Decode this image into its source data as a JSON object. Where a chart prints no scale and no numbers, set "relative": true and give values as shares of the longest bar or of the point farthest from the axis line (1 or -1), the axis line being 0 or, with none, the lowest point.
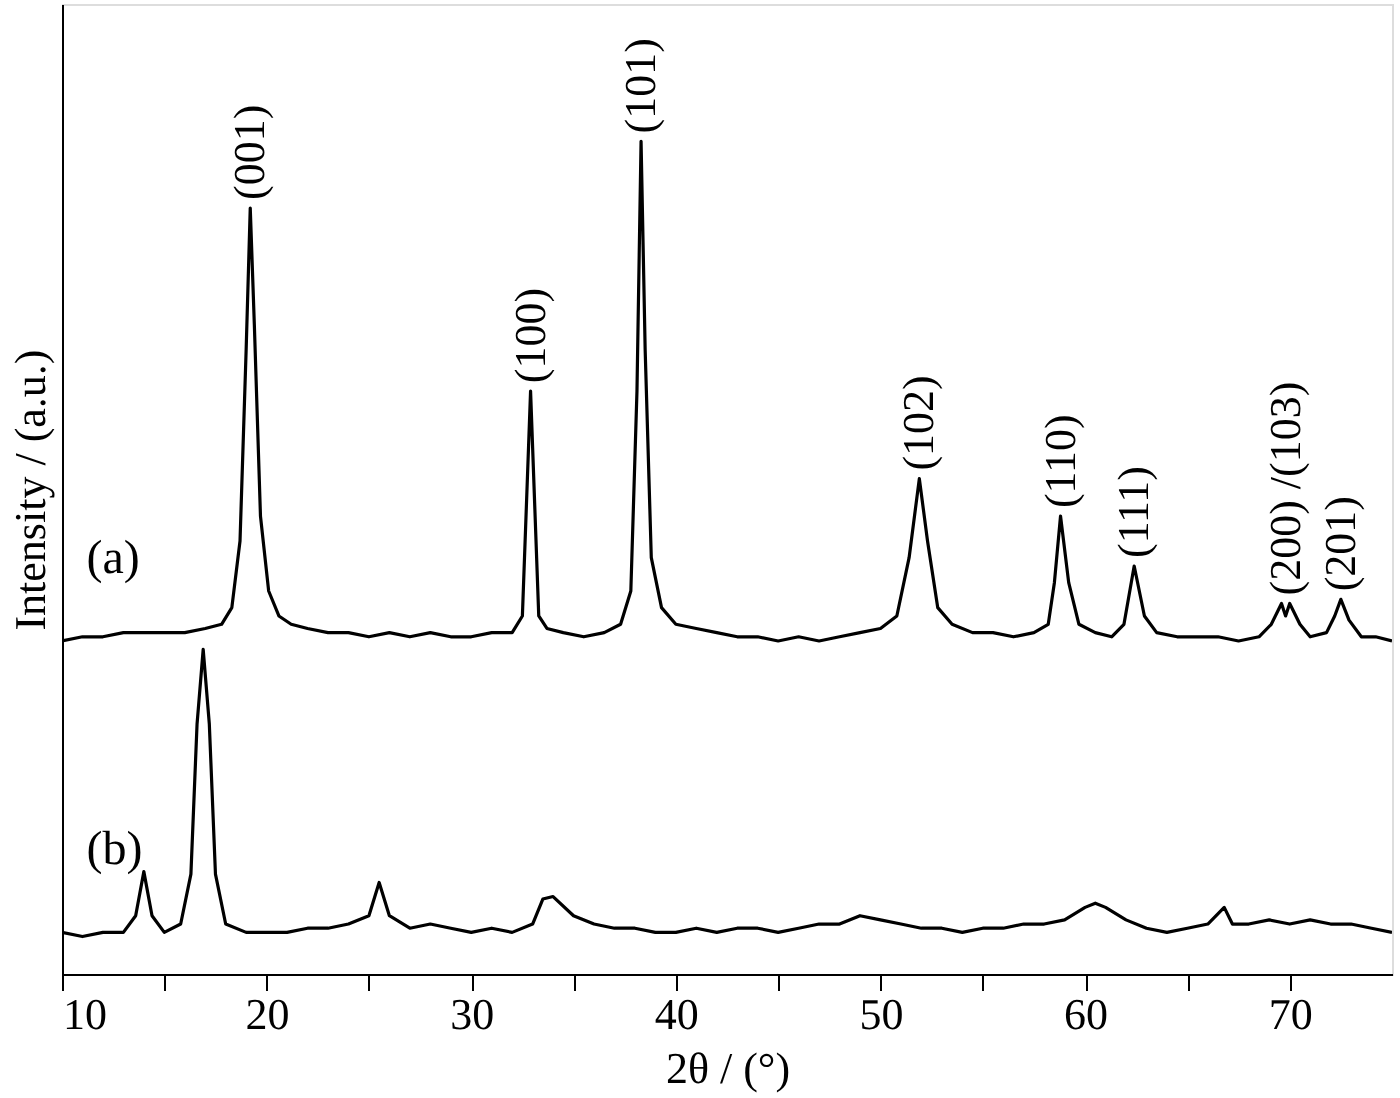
{
  "chart_data": {
    "type": "line",
    "relative": true,
    "xlabel": "2θ / (°)",
    "ylabel": "Intensity / (a.u.)",
    "xlim": [
      10,
      75
    ],
    "xticks": [
      10,
      {
        "value": 15,
        "label": null
      },
      20,
      {
        "value": 25,
        "label": null
      },
      30,
      {
        "value": 35,
        "label": null
      },
      40,
      {
        "value": 45,
        "label": null
      },
      50,
      {
        "value": 55,
        "label": null
      },
      60,
      {
        "value": 65,
        "label": null
      },
      70
    ],
    "grid": false,
    "marker": "none",
    "line_style": "solid",
    "series": [
      {
        "name": "(a)",
        "color": "#000000",
        "x": [
          10,
          11,
          12,
          13,
          14,
          15,
          16,
          17,
          17.8,
          18.3,
          18.7,
          19.0,
          19.2,
          19.4,
          19.7,
          20.1,
          20.6,
          21.2,
          22,
          23,
          24,
          25,
          26,
          27,
          28,
          29,
          30,
          31,
          32,
          32.5,
          32.9,
          33.3,
          33.7,
          34.5,
          35.5,
          36.5,
          37.3,
          37.8,
          38.1,
          38.3,
          38.5,
          38.8,
          39.3,
          40,
          41,
          42,
          43,
          44,
          45,
          46,
          47,
          48,
          49,
          50,
          50.8,
          51.4,
          51.9,
          52.3,
          52.8,
          53.5,
          54.5,
          55.5,
          56.5,
          57.5,
          58.2,
          58.5,
          58.8,
          59.2,
          59.7,
          60.5,
          61.3,
          61.9,
          62.4,
          62.9,
          63.5,
          64.5,
          65.5,
          66.5,
          67.5,
          68.5,
          69.1,
          69.6,
          69.8,
          70.0,
          70.5,
          71,
          71.8,
          72.2,
          72.5,
          72.9,
          73.5,
          74.2,
          75
        ],
        "values": [
          0.4,
          0.405,
          0.405,
          0.41,
          0.41,
          0.41,
          0.41,
          0.415,
          0.42,
          0.44,
          0.52,
          0.75,
          0.92,
          0.78,
          0.55,
          0.46,
          0.43,
          0.42,
          0.415,
          0.41,
          0.41,
          0.405,
          0.41,
          0.405,
          0.41,
          0.405,
          0.405,
          0.41,
          0.41,
          0.43,
          0.7,
          0.43,
          0.415,
          0.41,
          0.405,
          0.41,
          0.42,
          0.46,
          0.7,
          1.0,
          0.75,
          0.5,
          0.44,
          0.42,
          0.415,
          0.41,
          0.405,
          0.405,
          0.4,
          0.405,
          0.4,
          0.405,
          0.41,
          0.415,
          0.43,
          0.5,
          0.595,
          0.52,
          0.44,
          0.42,
          0.41,
          0.41,
          0.405,
          0.41,
          0.42,
          0.47,
          0.55,
          0.47,
          0.42,
          0.41,
          0.405,
          0.42,
          0.49,
          0.43,
          0.41,
          0.405,
          0.405,
          0.405,
          0.4,
          0.405,
          0.42,
          0.445,
          0.43,
          0.445,
          0.42,
          0.405,
          0.41,
          0.43,
          0.45,
          0.425,
          0.405,
          0.405,
          0.4
        ]
      },
      {
        "name": "(b)",
        "color": "#000000",
        "x": [
          10,
          11,
          12,
          13,
          13.6,
          14,
          14.4,
          15,
          15.8,
          16.3,
          16.6,
          16.9,
          17.2,
          17.5,
          18,
          19,
          20,
          21,
          22,
          23,
          24,
          25,
          25.5,
          26,
          27,
          28,
          29,
          30,
          31,
          32,
          33,
          33.5,
          34,
          35,
          36,
          37,
          38,
          39,
          40,
          41,
          42,
          43,
          44,
          45,
          46,
          47,
          48,
          49,
          50,
          51,
          52,
          53,
          54,
          55,
          56,
          57,
          58,
          59,
          60,
          60.5,
          61,
          62,
          63,
          64,
          65,
          66,
          66.8,
          67.2,
          68,
          69,
          70,
          71,
          72,
          73,
          74,
          75
        ],
        "values": [
          0.05,
          0.045,
          0.05,
          0.05,
          0.07,
          0.123,
          0.07,
          0.05,
          0.06,
          0.12,
          0.3,
          0.39,
          0.3,
          0.12,
          0.06,
          0.05,
          0.05,
          0.05,
          0.055,
          0.055,
          0.06,
          0.07,
          0.11,
          0.07,
          0.055,
          0.06,
          0.055,
          0.05,
          0.055,
          0.05,
          0.06,
          0.09,
          0.093,
          0.07,
          0.06,
          0.055,
          0.055,
          0.05,
          0.05,
          0.055,
          0.05,
          0.055,
          0.055,
          0.05,
          0.055,
          0.06,
          0.06,
          0.07,
          0.065,
          0.06,
          0.055,
          0.055,
          0.05,
          0.055,
          0.055,
          0.06,
          0.06,
          0.065,
          0.08,
          0.085,
          0.08,
          0.065,
          0.055,
          0.05,
          0.055,
          0.06,
          0.08,
          0.06,
          0.06,
          0.065,
          0.06,
          0.065,
          0.06,
          0.06,
          0.055,
          0.05
        ]
      }
    ],
    "annotations": [
      {
        "text": "(001)",
        "x": 19.2,
        "y": 0.92
      },
      {
        "text": "(100)",
        "x": 32.9,
        "y": 0.7
      },
      {
        "text": "(101)",
        "x": 38.3,
        "y": 1.0
      },
      {
        "text": "(102)",
        "x": 51.9,
        "y": 0.595
      },
      {
        "text": "(110)",
        "x": 58.8,
        "y": 0.55
      },
      {
        "text": "(111)",
        "x": 62.4,
        "y": 0.49
      },
      {
        "text": "(200) /(103)",
        "x": 69.8,
        "y": 0.445
      },
      {
        "text": "(201)",
        "x": 72.5,
        "y": 0.45
      }
    ]
  }
}
